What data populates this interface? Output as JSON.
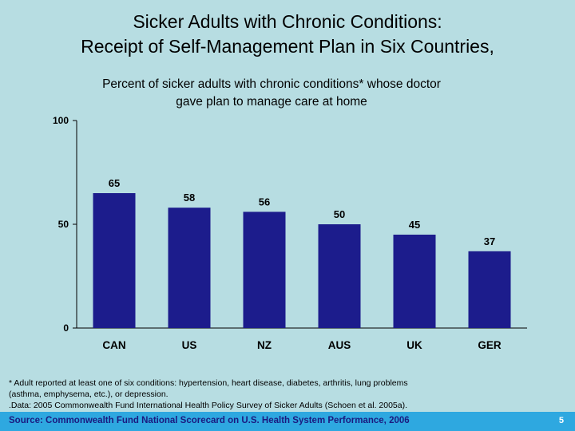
{
  "title": {
    "line1": "Sicker Adults with Chronic Conditions:",
    "line2": "Receipt of Self-Management Plan in Six Countries,"
  },
  "subtitle": {
    "line1": "Percent of sicker adults with chronic conditions* whose doctor",
    "line2": "gave plan to manage care at home"
  },
  "chart_data": {
    "type": "bar",
    "categories": [
      "CAN",
      "US",
      "NZ",
      "AUS",
      "UK",
      "GER"
    ],
    "values": [
      65,
      58,
      56,
      50,
      45,
      37
    ],
    "ylim": [
      0,
      100
    ],
    "yticks": [
      0,
      50,
      100
    ],
    "bar_color": "#1c1c8c",
    "grid": false,
    "legend": "none"
  },
  "footnote": {
    "line1": "* Adult reported at least one of six conditions: hypertension, heart disease, diabetes, arthritis, lung problems",
    "line2": "(asthma, emphysema, etc.), or depression.",
    "line3": ".Data: 2005 Commonwealth Fund International Health Policy Survey of Sicker Adults (Schoen et al. 2005a)."
  },
  "source": "Source: Commonwealth Fund National Scorecard on U.S. Health System Performance, 2006",
  "page_number": "5",
  "colors": {
    "background": "#b7dde2",
    "source_bar": "#2ea8e0",
    "bars": "#1c1c8c"
  }
}
